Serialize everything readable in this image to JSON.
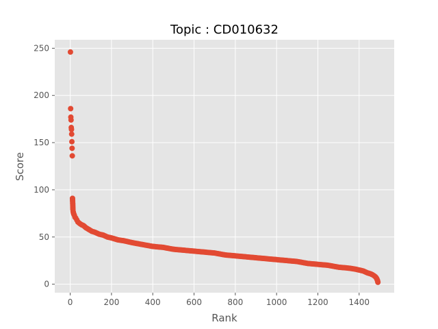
{
  "chart_data": {
    "type": "scatter",
    "title": "Topic : CD010632",
    "xlabel": "Rank",
    "ylabel": "Score",
    "xlim": [
      -75,
      1570
    ],
    "ylim": [
      -9,
      259
    ],
    "x_ticks": [
      0,
      200,
      400,
      600,
      800,
      1000,
      1200,
      1400
    ],
    "y_ticks": [
      0,
      50,
      100,
      150,
      200,
      250
    ],
    "grid": true,
    "background_color": "#e5e5e5",
    "marker_color": "#e24a33",
    "series": [
      {
        "points": [
          [
            1,
            246
          ],
          [
            2,
            186
          ],
          [
            3,
            177
          ],
          [
            4,
            174
          ],
          [
            5,
            166
          ],
          [
            6,
            164
          ],
          [
            7,
            159
          ],
          [
            8,
            151
          ],
          [
            9,
            144
          ],
          [
            10,
            136
          ],
          [
            11,
            91
          ],
          [
            12,
            86
          ],
          [
            13,
            79
          ],
          [
            14,
            77
          ],
          [
            15,
            76
          ],
          [
            16,
            75
          ],
          [
            18,
            74
          ],
          [
            20,
            73
          ],
          [
            23,
            71
          ],
          [
            27,
            70
          ],
          [
            32,
            68
          ],
          [
            37,
            66
          ],
          [
            42,
            65
          ],
          [
            48,
            64
          ],
          [
            55,
            63
          ],
          [
            65,
            62
          ],
          [
            75,
            60
          ],
          [
            90,
            58
          ],
          [
            105,
            56
          ],
          [
            120,
            55
          ],
          [
            140,
            53
          ],
          [
            160,
            52
          ],
          [
            180,
            50
          ],
          [
            200,
            49
          ],
          [
            230,
            47
          ],
          [
            260,
            46
          ],
          [
            300,
            44
          ],
          [
            350,
            42
          ],
          [
            400,
            40
          ],
          [
            450,
            39
          ],
          [
            500,
            37
          ],
          [
            550,
            36
          ],
          [
            600,
            35
          ],
          [
            650,
            34
          ],
          [
            700,
            33
          ],
          [
            750,
            31
          ],
          [
            800,
            30
          ],
          [
            850,
            29
          ],
          [
            900,
            28
          ],
          [
            950,
            27
          ],
          [
            1000,
            26
          ],
          [
            1050,
            25
          ],
          [
            1100,
            24
          ],
          [
            1150,
            22
          ],
          [
            1200,
            21
          ],
          [
            1250,
            20
          ],
          [
            1300,
            18
          ],
          [
            1350,
            17
          ],
          [
            1380,
            16
          ],
          [
            1400,
            15
          ],
          [
            1420,
            14
          ],
          [
            1440,
            12
          ],
          [
            1455,
            11
          ],
          [
            1465,
            10
          ],
          [
            1472,
            9
          ],
          [
            1478,
            8
          ],
          [
            1482,
            7
          ],
          [
            1485,
            6
          ],
          [
            1487,
            5
          ],
          [
            1489,
            4
          ],
          [
            1490,
            3
          ],
          [
            1491,
            2
          ]
        ]
      }
    ]
  }
}
